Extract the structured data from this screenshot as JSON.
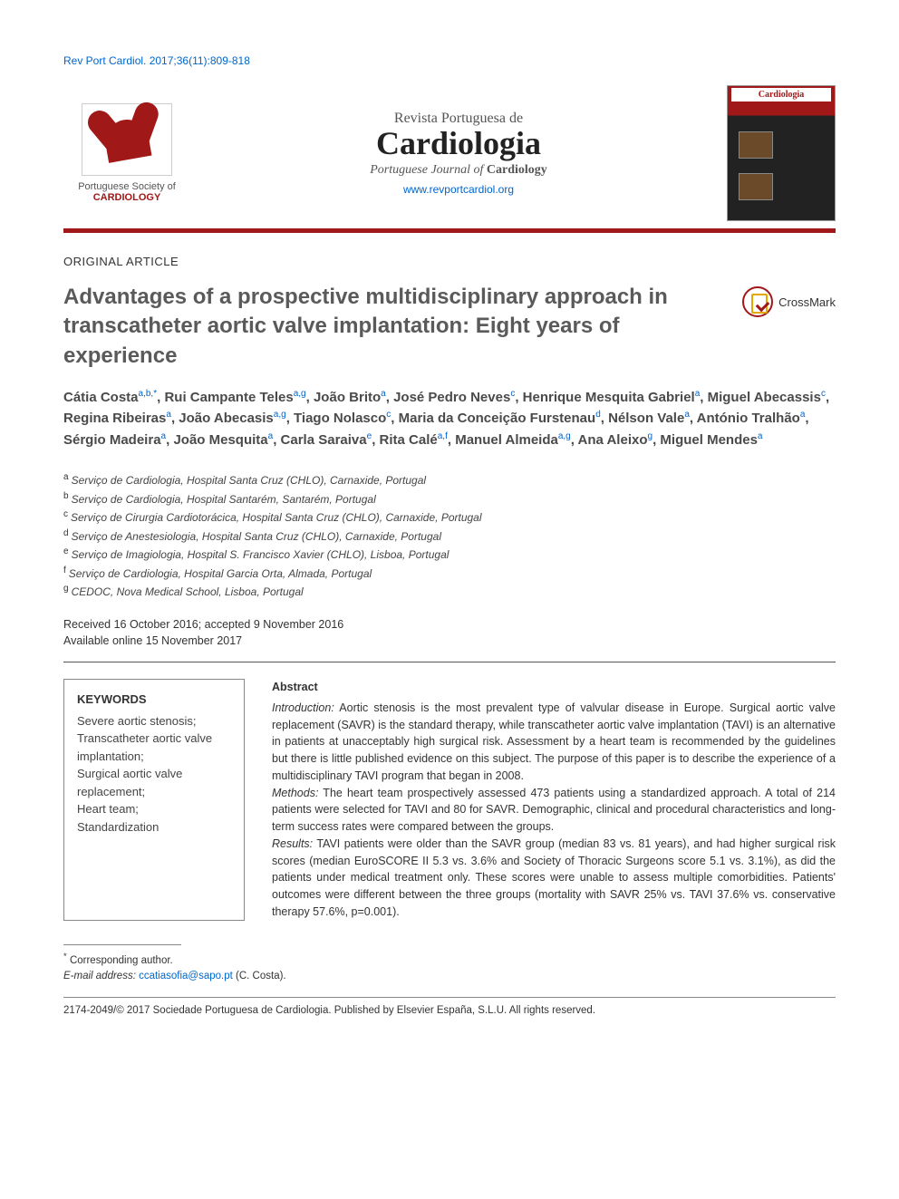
{
  "citation": "Rev Port Cardiol. 2017;36(11):809-818",
  "journal": {
    "pretitle": "Revista Portuguesa de",
    "title": "Cardiologia",
    "subtitle_prefix": "Portuguese Journal of ",
    "subtitle_bold": "Cardiology",
    "url": "www.revportcardiol.org"
  },
  "logo": {
    "line1": "Portuguese Society of",
    "line2": "CARDIOLOGY"
  },
  "cover_title": "Cardiologia",
  "section_label": "ORIGINAL ARTICLE",
  "article_title": "Advantages of a prospective multidisciplinary approach in transcatheter aortic valve implantation: Eight years of experience",
  "crossmark_label": "CrossMark",
  "authors": [
    {
      "name": "Cátia Costa",
      "aff": "a,b,*"
    },
    {
      "name": "Rui Campante Teles",
      "aff": "a,g"
    },
    {
      "name": "João Brito",
      "aff": "a"
    },
    {
      "name": "José Pedro Neves",
      "aff": "c"
    },
    {
      "name": "Henrique Mesquita Gabriel",
      "aff": "a"
    },
    {
      "name": "Miguel Abecassis",
      "aff": "c"
    },
    {
      "name": "Regina Ribeiras",
      "aff": "a"
    },
    {
      "name": "João Abecasis",
      "aff": "a,g"
    },
    {
      "name": "Tiago Nolasco",
      "aff": "c"
    },
    {
      "name": "Maria da Conceição Furstenau",
      "aff": "d"
    },
    {
      "name": "Nélson Vale",
      "aff": "a"
    },
    {
      "name": "António Tralhão",
      "aff": "a"
    },
    {
      "name": "Sérgio Madeira",
      "aff": "a"
    },
    {
      "name": "João Mesquita",
      "aff": "a"
    },
    {
      "name": "Carla Saraiva",
      "aff": "e"
    },
    {
      "name": "Rita Calé",
      "aff": "a,f"
    },
    {
      "name": "Manuel Almeida",
      "aff": "a,g"
    },
    {
      "name": "Ana Aleixo",
      "aff": "g"
    },
    {
      "name": "Miguel Mendes",
      "aff": "a"
    }
  ],
  "affiliations": [
    {
      "key": "a",
      "text": "Serviço de Cardiologia, Hospital Santa Cruz (CHLO), Carnaxide, Portugal"
    },
    {
      "key": "b",
      "text": "Serviço de Cardiologia, Hospital Santarém, Santarém, Portugal"
    },
    {
      "key": "c",
      "text": "Serviço de Cirurgia Cardiotorácica, Hospital Santa Cruz (CHLO), Carnaxide, Portugal"
    },
    {
      "key": "d",
      "text": "Serviço de Anestesiologia, Hospital Santa Cruz (CHLO), Carnaxide, Portugal"
    },
    {
      "key": "e",
      "text": "Serviço de Imagiologia, Hospital S. Francisco Xavier (CHLO), Lisboa, Portugal"
    },
    {
      "key": "f",
      "text": "Serviço de Cardiologia, Hospital Garcia Orta, Almada, Portugal"
    },
    {
      "key": "g",
      "text": "CEDOC, Nova Medical School, Lisboa, Portugal"
    }
  ],
  "dates": {
    "received_accepted": "Received 16 October 2016; accepted 9 November 2016",
    "online": "Available online 15 November 2017"
  },
  "keywords": {
    "heading": "KEYWORDS",
    "items": "Severe aortic stenosis;\nTranscatheter aortic valve implantation;\nSurgical aortic valve replacement;\nHeart team;\nStandardization"
  },
  "abstract": {
    "heading": "Abstract",
    "intro_label": "Introduction:",
    "intro_text": " Aortic stenosis is the most prevalent type of valvular disease in Europe. Surgical aortic valve replacement (SAVR) is the standard therapy, while transcatheter aortic valve implantation (TAVI) is an alternative in patients at unacceptably high surgical risk. Assessment by a heart team is recommended by the guidelines but there is little published evidence on this subject. The purpose of this paper is to describe the experience of a multidisciplinary TAVI program that began in 2008.",
    "methods_label": "Methods:",
    "methods_text": " The heart team prospectively assessed 473 patients using a standardized approach. A total of 214 patients were selected for TAVI and 80 for SAVR. Demographic, clinical and procedural characteristics and long-term success rates were compared between the groups.",
    "results_label": "Results:",
    "results_text": " TAVI patients were older than the SAVR group (median 83 vs. 81 years), and had higher surgical risk scores (median EuroSCORE II 5.3 vs. 3.6% and Society of Thoracic Surgeons score 5.1 vs. 3.1%), as did the patients under medical treatment only. These scores were unable to assess multiple comorbidities. Patients' outcomes were different between the three groups (mortality with SAVR 25% vs. TAVI 37.6% vs. conservative therapy 57.6%, p=0.001)."
  },
  "footnote": {
    "corresponding": "Corresponding author.",
    "email_label": "E-mail address:",
    "email": "ccatiasofia@sapo.pt",
    "email_suffix": " (C. Costa)."
  },
  "copyright": "2174-2049/© 2017 Sociedade Portuguesa de Cardiologia. Published by Elsevier España, S.L.U. All rights reserved.",
  "colors": {
    "link": "#0066cc",
    "brand": "#a01818",
    "text": "#333333",
    "title_gray": "#5a5a5a"
  }
}
